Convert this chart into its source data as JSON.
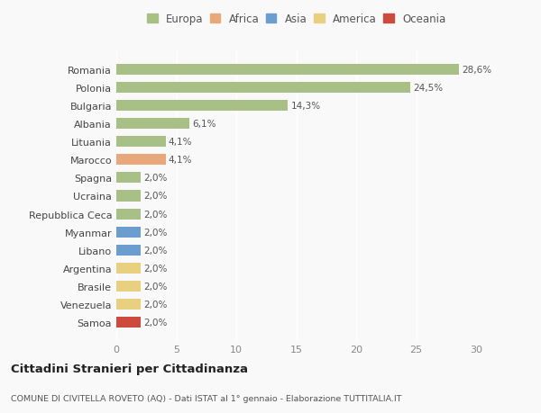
{
  "categories": [
    "Romania",
    "Polonia",
    "Bulgaria",
    "Albania",
    "Lituania",
    "Marocco",
    "Spagna",
    "Ucraina",
    "Repubblica Ceca",
    "Myanmar",
    "Libano",
    "Argentina",
    "Brasile",
    "Venezuela",
    "Samoa"
  ],
  "values": [
    28.6,
    24.5,
    14.3,
    6.1,
    4.1,
    4.1,
    2.0,
    2.0,
    2.0,
    2.0,
    2.0,
    2.0,
    2.0,
    2.0,
    2.0
  ],
  "labels": [
    "28,6%",
    "24,5%",
    "14,3%",
    "6,1%",
    "4,1%",
    "4,1%",
    "2,0%",
    "2,0%",
    "2,0%",
    "2,0%",
    "2,0%",
    "2,0%",
    "2,0%",
    "2,0%",
    "2,0%"
  ],
  "colors": [
    "#a8bf85",
    "#a8bf85",
    "#a8bf85",
    "#a8bf85",
    "#a8bf85",
    "#e8a87a",
    "#a8bf85",
    "#a8bf85",
    "#a8bf85",
    "#6b9ecf",
    "#6b9ecf",
    "#e8d080",
    "#e8d080",
    "#e8d080",
    "#cc4b3c"
  ],
  "continent_labels": [
    "Europa",
    "Africa",
    "Asia",
    "America",
    "Oceania"
  ],
  "continent_colors": [
    "#a8bf85",
    "#e8a87a",
    "#6b9ecf",
    "#e8d080",
    "#cc4b3c"
  ],
  "title": "Cittadini Stranieri per Cittadinanza",
  "subtitle": "COMUNE DI CIVITELLA ROVETO (AQ) - Dati ISTAT al 1° gennaio - Elaborazione TUTTITALIA.IT",
  "xlim": [
    0,
    30
  ],
  "xticks": [
    0,
    5,
    10,
    15,
    20,
    25,
    30
  ],
  "background_color": "#f9f9f9",
  "grid_color": "#e8e8e8",
  "bar_height": 0.6
}
